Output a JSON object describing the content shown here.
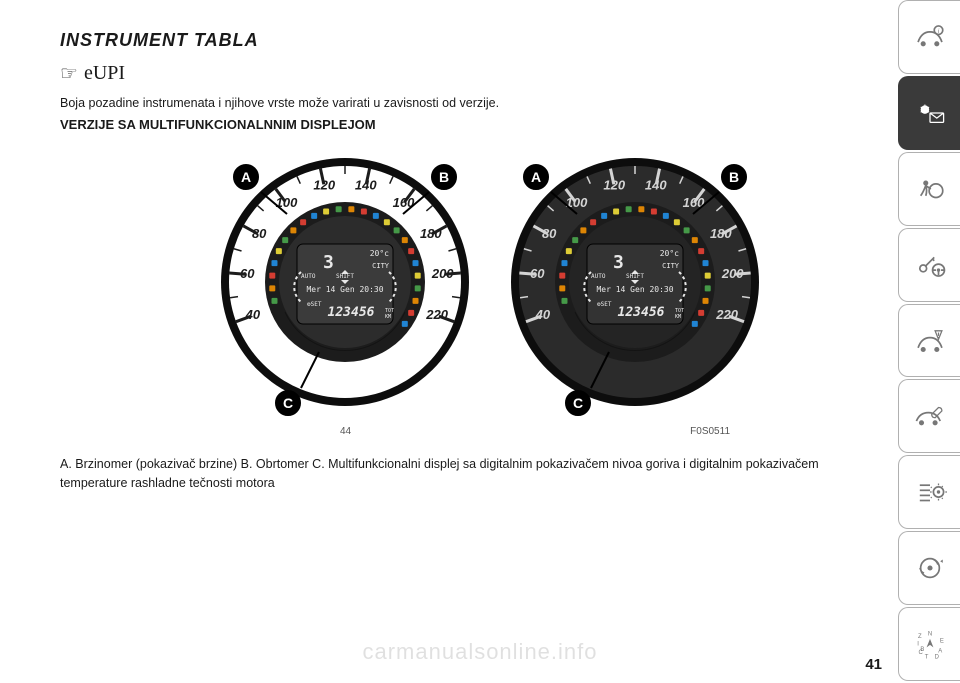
{
  "heading": "INSTRUMENT TABLA",
  "brand_script": "eUPI",
  "intro": "Boja pozadine instrumenata i njihove vrste može varirati u zavisnosti od verzije.",
  "subhead": "VERZIJE SA MULTIFUNKCIONALNNIM DISPLEJOM",
  "gauge": {
    "speed_labels": [
      "40",
      "60",
      "80",
      "100",
      "120",
      "140",
      "160",
      "180",
      "200",
      "220"
    ],
    "speed_min": 40,
    "speed_max": 220,
    "display_lines": [
      "20°c",
      "3 CITY",
      "AUTO SHIFT",
      "Mer 14 Gen 20:30",
      "SET",
      "123456 TOT KM"
    ],
    "temp_text": "20°c",
    "gear_text": "3",
    "mode_text": "CITY",
    "auto_text": "AUTO",
    "shift_text": "SHIFT",
    "date_text": "Mer 14 Gen 20:30",
    "set_text": "SET",
    "odo_text": "123456",
    "odo_unit": "TOT\nKM",
    "variant_light": {
      "ring_outer": "#ffffff",
      "ring_inner": "#1c1c1c",
      "tick_color": "#1c1c1c",
      "num_color": "#1c1c1c",
      "face_bg": "#2c2c2c",
      "lcd_bg": "#3b3b3b",
      "lcd_text": "#e8e8e8"
    },
    "variant_dark": {
      "ring_outer": "#2b2b2b",
      "ring_inner": "#1c1c1c",
      "tick_color": "#d4d4d4",
      "num_color": "#d4d4d4",
      "face_bg": "#242424",
      "lcd_bg": "#333333",
      "lcd_text": "#e8e8e8"
    }
  },
  "callouts": {
    "A": "A",
    "B": "B",
    "C": "C"
  },
  "figure_number": "44",
  "figure_code": "F0S0511",
  "caption": "A. Brzinomer (pokazivač brzine) B. Obrtomer C. Multifunkcionalni displej sa digitalnim pokazivačem nivoa goriva i digitalnim pokazivačem temperature rashladne tečnosti motora",
  "page_number": "41",
  "watermark": "carmanualsonline.info",
  "sidebar": {
    "active_index": 1,
    "items": [
      "car-info-icon",
      "warning-lights-icon",
      "airbag-icon",
      "key-steering-icon",
      "car-hazard-icon",
      "car-service-icon",
      "settings-list-icon",
      "media-icon",
      "nav-compass-icon"
    ]
  }
}
